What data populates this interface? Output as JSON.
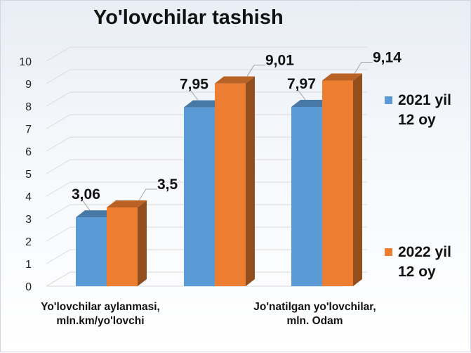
{
  "chart_data": {
    "type": "bar",
    "title": "Yo'lovchilar tashish",
    "categories": [
      "Yo'lovchilar aylanmasi, mln.km/yo'lovchi",
      "",
      "Jo'natilgan yo'lovchilar, mln. Odam"
    ],
    "category_label_lines": [
      [
        "Yo'lovchilar aylanmasi,",
        "mln.km/yo'lovchi"
      ],
      [],
      [
        "Jo'natilgan yo'lovchilar,",
        "mln. Odam"
      ]
    ],
    "series": [
      {
        "name": "2021 yil 12 oy",
        "values": [
          3.06,
          7.95,
          7.97
        ],
        "labels": [
          "3,06",
          "7,95",
          "7,97"
        ],
        "color": "#5b9bd5"
      },
      {
        "name": "2022 yil 12 oy",
        "values": [
          3.5,
          9.01,
          9.14
        ],
        "labels": [
          "3,5",
          "9,01",
          "9,14"
        ],
        "color": "#ed7d31"
      }
    ],
    "ylim": [
      0,
      10
    ],
    "yticks": [
      "0",
      "1",
      "2",
      "3",
      "4",
      "5",
      "6",
      "7",
      "8",
      "9",
      "10"
    ],
    "grid": true,
    "legend_position": "right",
    "xlabel": "",
    "ylabel": ""
  }
}
